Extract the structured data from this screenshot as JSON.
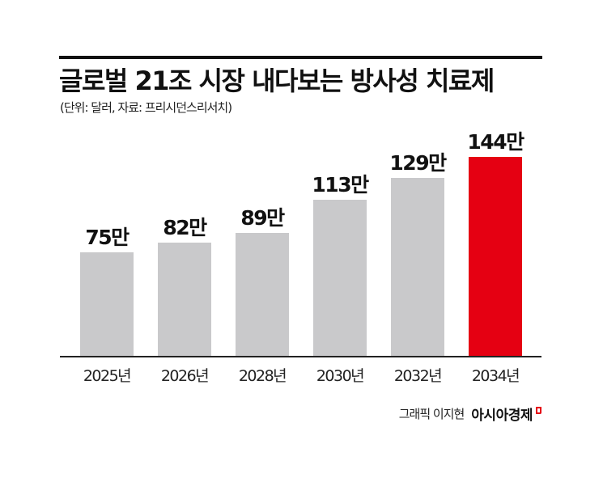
{
  "header": {
    "title": "글로벌 21조 시장 내다보는 방사성 치료제",
    "subtitle": "(단위: 달러, 자료: 프리시던스리서치)"
  },
  "footer": {
    "credit": "그래픽 이지현",
    "brand": "아시아경제",
    "logo_icon": "red-flag-mark"
  },
  "colors": {
    "bar_default": "#c9c9cb",
    "bar_highlight": "#e50012",
    "axis": "#222222",
    "text": "#111111"
  },
  "chart_data": {
    "type": "bar",
    "title": "글로벌 21조 시장 내다보는 방사성 치료제",
    "subtitle": "(단위: 달러, 자료: 프리시던스리서치)",
    "xlabel": "",
    "ylabel": "",
    "unit": "달러",
    "source": "프리시던스리서치",
    "categories": [
      "2025년",
      "2026년",
      "2028년",
      "2030년",
      "2032년",
      "2034년"
    ],
    "values": [
      75,
      82,
      89,
      113,
      129,
      144
    ],
    "value_labels": [
      "75만",
      "82만",
      "89만",
      "113만",
      "129만",
      "144만"
    ],
    "highlight_index": 5,
    "ylim": [
      0,
      144
    ],
    "grid": false,
    "legend": null
  }
}
